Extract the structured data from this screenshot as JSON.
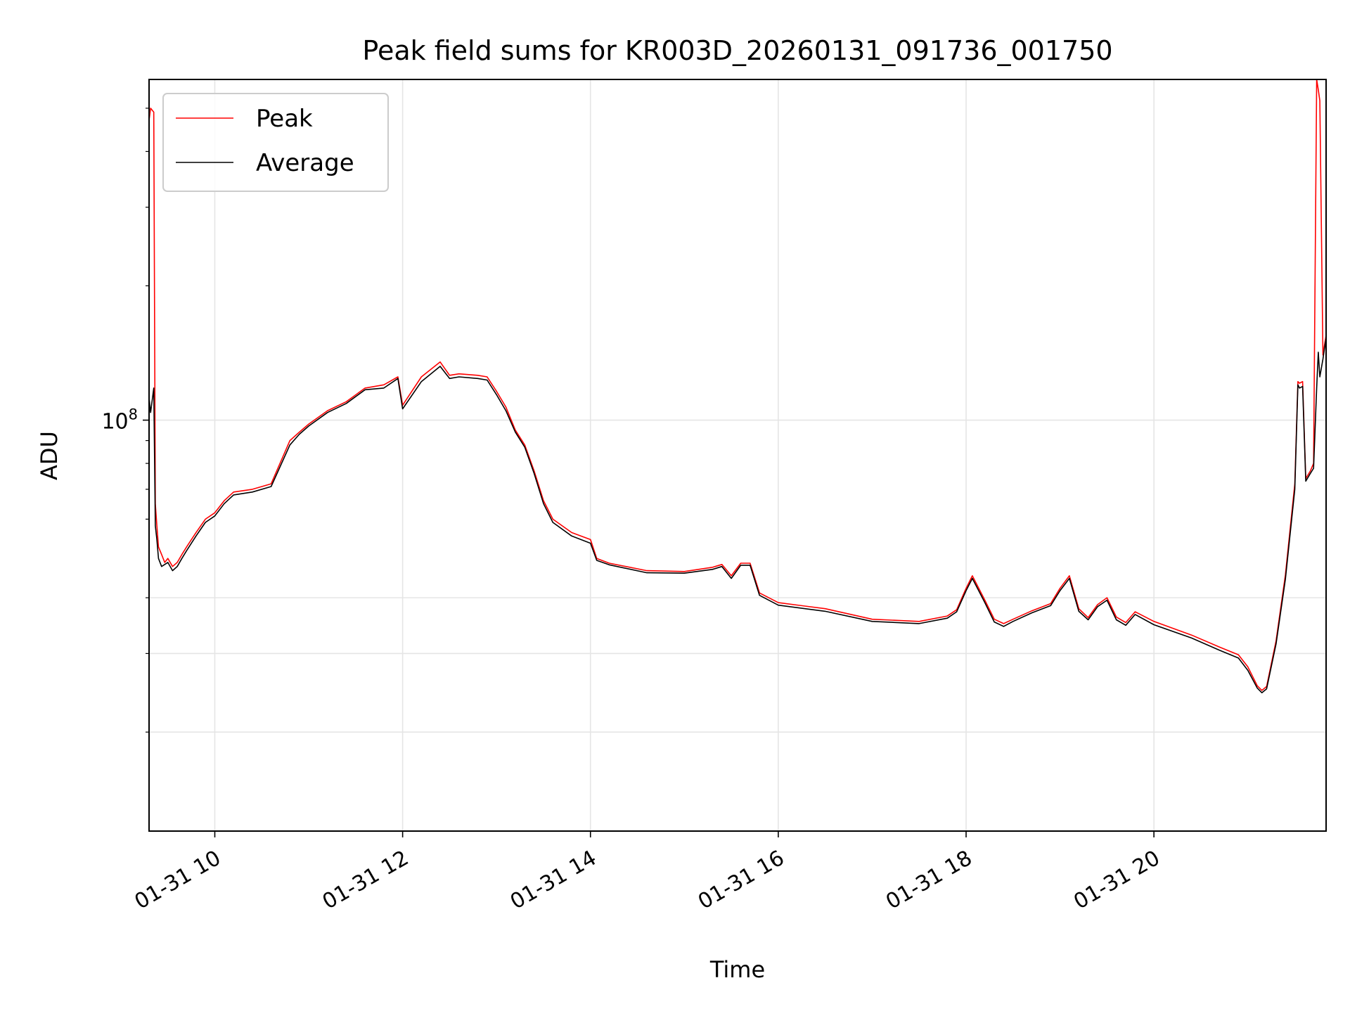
{
  "chart_data": {
    "type": "line",
    "title": "Peak field sums for KR003D_20260131_091736_001750",
    "xlabel": "Time",
    "ylabel": "ADU",
    "y_scale": "log",
    "ylim": [
      12000000,
      580000000
    ],
    "xlim": [
      "2026-01-31 09:18",
      "2026-01-31 21:50"
    ],
    "grid": true,
    "legend_position": "upper-left",
    "x_tick_labels": [
      "01-31 10",
      "01-31 12",
      "01-31 14",
      "01-31 16",
      "01-31 18",
      "01-31 20"
    ],
    "x_ticks": [
      "2026-01-31 10:00",
      "2026-01-31 12:00",
      "2026-01-31 14:00",
      "2026-01-31 16:00",
      "2026-01-31 18:00",
      "2026-01-31 20:00"
    ],
    "y_major_ticks": [
      {
        "value": 100000000,
        "label": "10^8"
      }
    ],
    "y_minor_ticks": [
      20000000,
      30000000,
      40000000,
      60000000,
      70000000,
      80000000,
      90000000,
      200000000,
      300000000,
      400000000,
      500000000
    ],
    "y_gridlines": [
      20000000,
      30000000,
      40000000,
      100000000
    ],
    "x": [
      "2026-01-31 09:18",
      "2026-01-31 09:18",
      "2026-01-31 09:19",
      "2026-01-31 09:21",
      "2026-01-31 09:22",
      "2026-01-31 09:23",
      "2026-01-31 09:24",
      "2026-01-31 09:26",
      "2026-01-31 09:28",
      "2026-01-31 09:30",
      "2026-01-31 09:33",
      "2026-01-31 09:36",
      "2026-01-31 09:39",
      "2026-01-31 09:42",
      "2026-01-31 09:48",
      "2026-01-31 09:54",
      "2026-01-31 10:00",
      "2026-01-31 10:06",
      "2026-01-31 10:12",
      "2026-01-31 10:24",
      "2026-01-31 10:36",
      "2026-01-31 10:48",
      "2026-01-31 10:54",
      "2026-01-31 11:00",
      "2026-01-31 11:12",
      "2026-01-31 11:24",
      "2026-01-31 11:36",
      "2026-01-31 11:48",
      "2026-01-31 11:57",
      "2026-01-31 12:00",
      "2026-01-31 12:12",
      "2026-01-31 12:24",
      "2026-01-31 12:30",
      "2026-01-31 12:36",
      "2026-01-31 12:48",
      "2026-01-31 12:54",
      "2026-01-31 13:00",
      "2026-01-31 13:06",
      "2026-01-31 13:12",
      "2026-01-31 13:18",
      "2026-01-31 13:24",
      "2026-01-31 13:30",
      "2026-01-31 13:36",
      "2026-01-31 13:48",
      "2026-01-31 14:00",
      "2026-01-31 14:04",
      "2026-01-31 14:12",
      "2026-01-31 14:36",
      "2026-01-31 15:00",
      "2026-01-31 15:18",
      "2026-01-31 15:24",
      "2026-01-31 15:30",
      "2026-01-31 15:36",
      "2026-01-31 15:42",
      "2026-01-31 15:48",
      "2026-01-31 16:00",
      "2026-01-31 16:30",
      "2026-01-31 17:00",
      "2026-01-31 17:30",
      "2026-01-31 17:48",
      "2026-01-31 17:54",
      "2026-01-31 18:00",
      "2026-01-31 18:04",
      "2026-01-31 18:12",
      "2026-01-31 18:18",
      "2026-01-31 18:24",
      "2026-01-31 18:30",
      "2026-01-31 18:42",
      "2026-01-31 18:54",
      "2026-01-31 19:00",
      "2026-01-31 19:06",
      "2026-01-31 19:12",
      "2026-01-31 19:18",
      "2026-01-31 19:24",
      "2026-01-31 19:30",
      "2026-01-31 19:36",
      "2026-01-31 19:42",
      "2026-01-31 19:48",
      "2026-01-31 20:00",
      "2026-01-31 20:24",
      "2026-01-31 20:42",
      "2026-01-31 20:54",
      "2026-01-31 21:00",
      "2026-01-31 21:06",
      "2026-01-31 21:09",
      "2026-01-31 21:12",
      "2026-01-31 21:18",
      "2026-01-31 21:24",
      "2026-01-31 21:30",
      "2026-01-31 21:32",
      "2026-01-31 21:33",
      "2026-01-31 21:35",
      "2026-01-31 21:37",
      "2026-01-31 21:40",
      "2026-01-31 21:42",
      "2026-01-31 21:44",
      "2026-01-31 21:45",
      "2026-01-31 21:46",
      "2026-01-31 21:48",
      "2026-01-31 21:50"
    ],
    "series": [
      {
        "name": "Peak",
        "color": "#ff0000",
        "values": [
          300000000,
          470000000,
          500000000,
          490000000,
          65000000,
          58000000,
          52000000,
          50000000,
          48000000,
          49000000,
          47000000,
          48000000,
          50000000,
          52000000,
          56000000,
          60000000,
          62000000,
          66000000,
          69000000,
          70000000,
          72000000,
          90000000,
          94000000,
          98000000,
          105000000,
          110000000,
          118000000,
          120000000,
          125000000,
          108000000,
          125000000,
          135000000,
          126000000,
          127000000,
          126000000,
          125000000,
          116000000,
          107000000,
          95000000,
          88000000,
          77000000,
          66000000,
          60000000,
          56000000,
          54000000,
          49000000,
          47800000,
          46000000,
          45800000,
          46800000,
          47500000,
          44800000,
          47800000,
          47800000,
          41000000,
          39000000,
          37800000,
          35800000,
          35400000,
          36400000,
          37600000,
          42000000,
          44800000,
          39500000,
          35800000,
          35000000,
          35800000,
          37400000,
          38800000,
          42000000,
          44800000,
          37800000,
          36100000,
          38600000,
          40000000,
          36200000,
          35200000,
          37200000,
          35400000,
          33000000,
          31000000,
          29800000,
          28000000,
          25400000,
          24800000,
          25300000,
          32000000,
          45000000,
          72000000,
          122000000,
          121000000,
          122000000,
          74000000,
          77000000,
          80000000,
          580000000,
          550000000,
          520000000,
          140000000,
          155000000
        ]
      },
      {
        "name": "Average",
        "color": "#000000",
        "values": [
          126000000,
          112000000,
          104000000,
          118000000,
          58000000,
          54000000,
          49000000,
          47000000,
          47500000,
          48000000,
          46000000,
          47000000,
          49000000,
          51000000,
          55000000,
          59000000,
          61000000,
          65000000,
          68000000,
          69000000,
          71000000,
          88000000,
          93000000,
          97000000,
          104000000,
          109000000,
          117000000,
          118000000,
          124000000,
          106000000,
          122000000,
          132000000,
          124000000,
          125000000,
          124000000,
          123000000,
          114000000,
          105000000,
          94000000,
          87000000,
          76000000,
          65000000,
          59000000,
          55000000,
          53000000,
          48500000,
          47400000,
          45500000,
          45400000,
          46300000,
          47000000,
          44200000,
          47300000,
          47300000,
          40500000,
          38500000,
          37300000,
          35400000,
          35000000,
          36000000,
          37200000,
          41500000,
          44200000,
          39000000,
          35300000,
          34500000,
          35400000,
          37000000,
          38400000,
          41500000,
          44200000,
          37300000,
          35700000,
          38200000,
          39500000,
          35700000,
          34700000,
          36700000,
          34800000,
          32500000,
          30500000,
          29300000,
          27500000,
          25100000,
          24500000,
          25000000,
          31500000,
          44000000,
          70000000,
          120000000,
          118000000,
          119000000,
          73000000,
          76000000,
          78000000,
          118000000,
          142000000,
          125000000,
          137000000,
          153000000
        ]
      }
    ]
  }
}
